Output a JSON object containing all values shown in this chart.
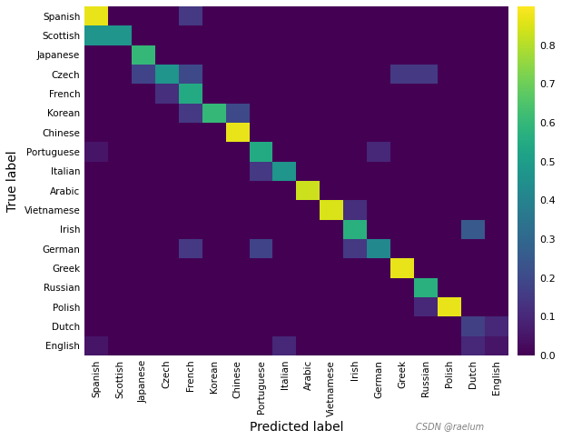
{
  "labels": [
    "Spanish",
    "Scottish",
    "Japanese",
    "Czech",
    "French",
    "Korean",
    "Chinese",
    "Portuguese",
    "Italian",
    "Arabic",
    "Vietnamese",
    "Irish",
    "German",
    "Greek",
    "Russian",
    "Polish",
    "Dutch",
    "English"
  ],
  "matrix": [
    [
      0.87,
      0.0,
      0.0,
      0.0,
      0.15,
      0.0,
      0.0,
      0.0,
      0.0,
      0.0,
      0.0,
      0.0,
      0.0,
      0.0,
      0.0,
      0.0,
      0.0,
      0.0
    ],
    [
      0.47,
      0.47,
      0.0,
      0.0,
      0.0,
      0.0,
      0.0,
      0.0,
      0.0,
      0.0,
      0.0,
      0.0,
      0.0,
      0.0,
      0.0,
      0.0,
      0.0,
      0.0
    ],
    [
      0.0,
      0.0,
      0.6,
      0.0,
      0.0,
      0.0,
      0.0,
      0.0,
      0.0,
      0.0,
      0.0,
      0.0,
      0.0,
      0.0,
      0.0,
      0.0,
      0.0,
      0.0
    ],
    [
      0.0,
      0.0,
      0.18,
      0.47,
      0.2,
      0.0,
      0.0,
      0.0,
      0.0,
      0.0,
      0.0,
      0.0,
      0.0,
      0.15,
      0.15,
      0.0,
      0.0,
      0.0
    ],
    [
      0.0,
      0.0,
      0.0,
      0.12,
      0.55,
      0.0,
      0.0,
      0.0,
      0.0,
      0.0,
      0.0,
      0.0,
      0.0,
      0.0,
      0.0,
      0.0,
      0.0,
      0.0
    ],
    [
      0.0,
      0.0,
      0.0,
      0.0,
      0.15,
      0.6,
      0.2,
      0.0,
      0.0,
      0.0,
      0.0,
      0.0,
      0.0,
      0.0,
      0.0,
      0.0,
      0.0,
      0.0
    ],
    [
      0.0,
      0.0,
      0.0,
      0.0,
      0.0,
      0.0,
      0.87,
      0.0,
      0.0,
      0.0,
      0.0,
      0.0,
      0.0,
      0.0,
      0.0,
      0.0,
      0.0,
      0.0
    ],
    [
      0.05,
      0.0,
      0.0,
      0.0,
      0.0,
      0.0,
      0.0,
      0.55,
      0.0,
      0.0,
      0.0,
      0.0,
      0.1,
      0.0,
      0.0,
      0.0,
      0.0,
      0.0
    ],
    [
      0.0,
      0.0,
      0.0,
      0.0,
      0.0,
      0.0,
      0.0,
      0.15,
      0.47,
      0.0,
      0.0,
      0.0,
      0.0,
      0.0,
      0.0,
      0.0,
      0.0,
      0.0
    ],
    [
      0.0,
      0.0,
      0.0,
      0.0,
      0.0,
      0.0,
      0.0,
      0.0,
      0.0,
      0.83,
      0.0,
      0.0,
      0.0,
      0.0,
      0.0,
      0.0,
      0.0,
      0.0
    ],
    [
      0.0,
      0.0,
      0.0,
      0.0,
      0.0,
      0.0,
      0.0,
      0.0,
      0.0,
      0.0,
      0.85,
      0.12,
      0.0,
      0.0,
      0.0,
      0.0,
      0.0,
      0.0
    ],
    [
      0.0,
      0.0,
      0.0,
      0.0,
      0.0,
      0.0,
      0.0,
      0.0,
      0.0,
      0.0,
      0.0,
      0.57,
      0.0,
      0.0,
      0.0,
      0.0,
      0.25,
      0.0
    ],
    [
      0.0,
      0.0,
      0.0,
      0.0,
      0.15,
      0.0,
      0.0,
      0.18,
      0.0,
      0.0,
      0.0,
      0.15,
      0.42,
      0.0,
      0.0,
      0.0,
      0.0,
      0.0
    ],
    [
      0.0,
      0.0,
      0.0,
      0.0,
      0.0,
      0.0,
      0.0,
      0.0,
      0.0,
      0.0,
      0.0,
      0.0,
      0.0,
      0.87,
      0.0,
      0.0,
      0.0,
      0.0
    ],
    [
      0.0,
      0.0,
      0.0,
      0.0,
      0.0,
      0.0,
      0.0,
      0.0,
      0.0,
      0.0,
      0.0,
      0.0,
      0.0,
      0.0,
      0.57,
      0.0,
      0.0,
      0.0
    ],
    [
      0.0,
      0.0,
      0.0,
      0.0,
      0.0,
      0.0,
      0.0,
      0.0,
      0.0,
      0.0,
      0.0,
      0.0,
      0.0,
      0.0,
      0.1,
      0.87,
      0.0,
      0.0
    ],
    [
      0.0,
      0.0,
      0.0,
      0.0,
      0.0,
      0.0,
      0.0,
      0.0,
      0.0,
      0.0,
      0.0,
      0.0,
      0.0,
      0.0,
      0.0,
      0.0,
      0.17,
      0.1
    ],
    [
      0.05,
      0.0,
      0.0,
      0.0,
      0.0,
      0.0,
      0.0,
      0.0,
      0.1,
      0.0,
      0.0,
      0.0,
      0.0,
      0.0,
      0.0,
      0.0,
      0.1,
      0.05
    ]
  ],
  "xlabel": "Predicted label",
  "ylabel": "True label",
  "colormap": "viridis",
  "vmin": 0.0,
  "vmax": 0.9,
  "colorbar_ticks": [
    0.0,
    0.1,
    0.2,
    0.3,
    0.4,
    0.5,
    0.6,
    0.7,
    0.8
  ],
  "watermark": "CSDN @raelum",
  "fig_bg": "#ffffff",
  "figsize": [
    6.19,
    4.84
  ],
  "dpi": 100
}
